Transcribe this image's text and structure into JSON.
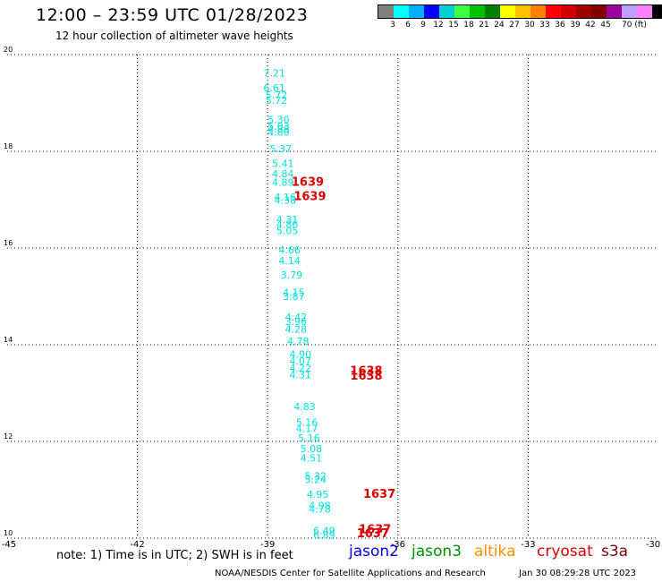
{
  "header": {
    "title": "12:00 – 23:59 UTC 01/28/2023",
    "subtitle": "12 hour collection of altimeter wave heights"
  },
  "colorbar": {
    "colors": [
      "#808080",
      "#00ffff",
      "#00b0ff",
      "#0000ff",
      "#00d0d0",
      "#40ff40",
      "#00c000",
      "#008000",
      "#ffff00",
      "#ffc000",
      "#ff8000",
      "#ff0000",
      "#d00000",
      "#a00000",
      "#800000",
      "#a000a0",
      "#c0a0ff",
      "#ff80ff",
      "#000000"
    ],
    "labels": [
      "3",
      "6",
      "9",
      "12",
      "15",
      "18",
      "21",
      "24",
      "27",
      "30",
      "33",
      "36",
      "39",
      "42",
      "45",
      "70 (ft)"
    ]
  },
  "chart_data": {
    "type": "scatter",
    "title": "12:00 – 23:59 UTC 01/28/2023",
    "xlim": [
      -45,
      -30
    ],
    "ylim": [
      10,
      20
    ],
    "x_ticks": [
      "-45",
      "-42",
      "-39",
      "-36",
      "-33",
      "-30"
    ],
    "y_ticks": [
      "10",
      "12",
      "14",
      "16",
      "18",
      "20"
    ],
    "grid": true,
    "series": [
      {
        "color": "#00e0e0",
        "points": [
          {
            "x": -39.1,
            "y": 19.55,
            "label": "7.21"
          },
          {
            "x": -39.1,
            "y": 19.24,
            "label": "6.61"
          },
          {
            "x": -39.05,
            "y": 19.09,
            "label": "5.72"
          },
          {
            "x": -39.05,
            "y": 18.98,
            "label": "5.72"
          },
          {
            "x": -39.0,
            "y": 18.58,
            "label": "5.30"
          },
          {
            "x": -39.0,
            "y": 18.44,
            "label": "5.03"
          },
          {
            "x": -39.0,
            "y": 18.39,
            "label": "4.88"
          },
          {
            "x": -39.0,
            "y": 18.32,
            "label": "4.80"
          },
          {
            "x": -38.95,
            "y": 17.98,
            "label": "5.37"
          },
          {
            "x": -38.9,
            "y": 17.68,
            "label": "5.41"
          },
          {
            "x": -38.9,
            "y": 17.46,
            "label": "4.84"
          },
          {
            "x": -38.9,
            "y": 17.29,
            "label": "4.89"
          },
          {
            "x": -38.85,
            "y": 16.98,
            "label": "4.16"
          },
          {
            "x": -38.85,
            "y": 16.92,
            "label": "4.38"
          },
          {
            "x": -38.8,
            "y": 16.52,
            "label": "4.31"
          },
          {
            "x": -38.8,
            "y": 16.42,
            "label": "4.86"
          },
          {
            "x": -38.8,
            "y": 16.29,
            "label": "5.05"
          },
          {
            "x": -38.75,
            "y": 15.89,
            "label": "4.66"
          },
          {
            "x": -38.75,
            "y": 15.67,
            "label": "4.14"
          },
          {
            "x": -38.7,
            "y": 15.37,
            "label": "3.79"
          },
          {
            "x": -38.65,
            "y": 15.01,
            "label": "4.15"
          },
          {
            "x": -38.65,
            "y": 14.93,
            "label": "3.87"
          },
          {
            "x": -38.6,
            "y": 14.5,
            "label": "4.42"
          },
          {
            "x": -38.6,
            "y": 14.41,
            "label": "3.96"
          },
          {
            "x": -38.6,
            "y": 14.25,
            "label": "4.28"
          },
          {
            "x": -38.55,
            "y": 14.0,
            "label": "4.78"
          },
          {
            "x": -38.5,
            "y": 13.73,
            "label": "4.90"
          },
          {
            "x": -38.5,
            "y": 13.59,
            "label": "4.07"
          },
          {
            "x": -38.5,
            "y": 13.44,
            "label": "4.22"
          },
          {
            "x": -38.5,
            "y": 13.31,
            "label": "4.31"
          },
          {
            "x": -38.4,
            "y": 12.65,
            "label": "4.83"
          },
          {
            "x": -38.35,
            "y": 12.32,
            "label": "5.16"
          },
          {
            "x": -38.35,
            "y": 12.19,
            "label": "4.17"
          },
          {
            "x": -38.3,
            "y": 12.0,
            "label": "5.16"
          },
          {
            "x": -38.25,
            "y": 11.78,
            "label": "5.08"
          },
          {
            "x": -38.25,
            "y": 11.58,
            "label": "4.51"
          },
          {
            "x": -38.15,
            "y": 11.21,
            "label": "5.32"
          },
          {
            "x": -38.15,
            "y": 11.14,
            "label": "5.24"
          },
          {
            "x": -38.1,
            "y": 10.83,
            "label": "4.95"
          },
          {
            "x": -38.05,
            "y": 10.6,
            "label": "4.98"
          },
          {
            "x": -38.05,
            "y": 10.53,
            "label": "4.78"
          },
          {
            "x": -37.95,
            "y": 10.08,
            "label": "6.49"
          },
          {
            "x": -37.95,
            "y": 9.99,
            "label": "6.89"
          }
        ]
      },
      {
        "color": "#dd0000",
        "points": [
          {
            "x": -38.45,
            "y": 17.29,
            "label": "1639"
          },
          {
            "x": -38.4,
            "y": 16.99,
            "label": "1639"
          },
          {
            "x": -37.1,
            "y": 13.38,
            "label": "1638"
          },
          {
            "x": -37.1,
            "y": 13.28,
            "label": "1638"
          },
          {
            "x": -36.8,
            "y": 10.83,
            "label": "1637"
          },
          {
            "x": -36.9,
            "y": 10.1,
            "label": "1637"
          },
          {
            "x": -36.95,
            "y": 10.02,
            "label": "1637"
          }
        ]
      }
    ]
  },
  "footer": {
    "note": "note:  1) Time is in UTC;  2) SWH is in feet",
    "satellites": [
      {
        "name": "jason2",
        "color": "#0000ff"
      },
      {
        "name": "jason3",
        "color": "#009000"
      },
      {
        "name": "altika",
        "color": "#ff9000"
      },
      {
        "name": "cryosat",
        "color": "#dd0000"
      },
      {
        "name": "s3a",
        "color": "#800000"
      }
    ],
    "credit": "NOAA/NESDIS Center for Satellite Applications and Research",
    "timestamp": "Jan 30 08:29:28 UTC 2023"
  }
}
